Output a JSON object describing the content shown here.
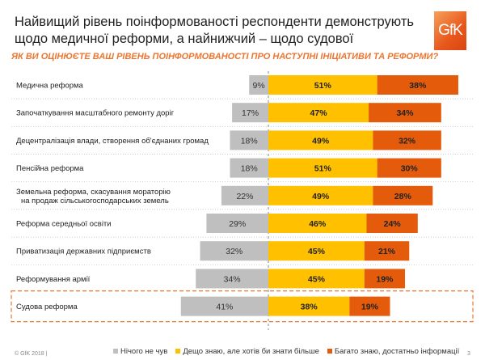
{
  "header": {
    "title": "Найвищий рівень поінформованості респонденти демонструють щодо медичної реформи, а найнижчий – щодо судової",
    "logo_text": "GfK",
    "question": "ЯК ВИ ОЦІНЮЄТЕ ВАШ РІВЕНЬ ПОІНФОРМОВАНОСТІ ПРО НАСТУПНІ ІНІЦІАТИВИ ТА РЕФОРМИ?"
  },
  "chart_data": {
    "type": "bar",
    "orientation": "horizontal",
    "stacked": true,
    "diverging": true,
    "categories": [
      "Медична реформа",
      "Започаткування масштабного ремонту доріг",
      "Децентралізація  влади, створення об'єднаних громад",
      "Пенсійна реформа",
      "Земельна реформа, скасування мораторію на продаж сільськогосподарських земель",
      "Реформа середньої освіти",
      "Приватизація державних підприємств",
      "Реформування армії",
      "Судова реформа"
    ],
    "series": [
      {
        "name": "Нічого не чув",
        "color": "#bfbfbf",
        "values": [
          9,
          17,
          18,
          18,
          22,
          29,
          32,
          34,
          41
        ]
      },
      {
        "name": "Дещо знаю, але хотів би знати більше",
        "color": "#ffc000",
        "values": [
          51,
          47,
          49,
          51,
          49,
          46,
          45,
          45,
          38
        ]
      },
      {
        "name": "Багато знаю, достатньо інформації",
        "color": "#e35b0b",
        "values": [
          38,
          34,
          32,
          30,
          28,
          24,
          21,
          19,
          19
        ]
      }
    ],
    "unit": "%",
    "legend_position": "bottom",
    "highlighted_category": "Судова реформа"
  },
  "footer": {
    "copyright": "© GfK 2018 |",
    "page": "3"
  }
}
